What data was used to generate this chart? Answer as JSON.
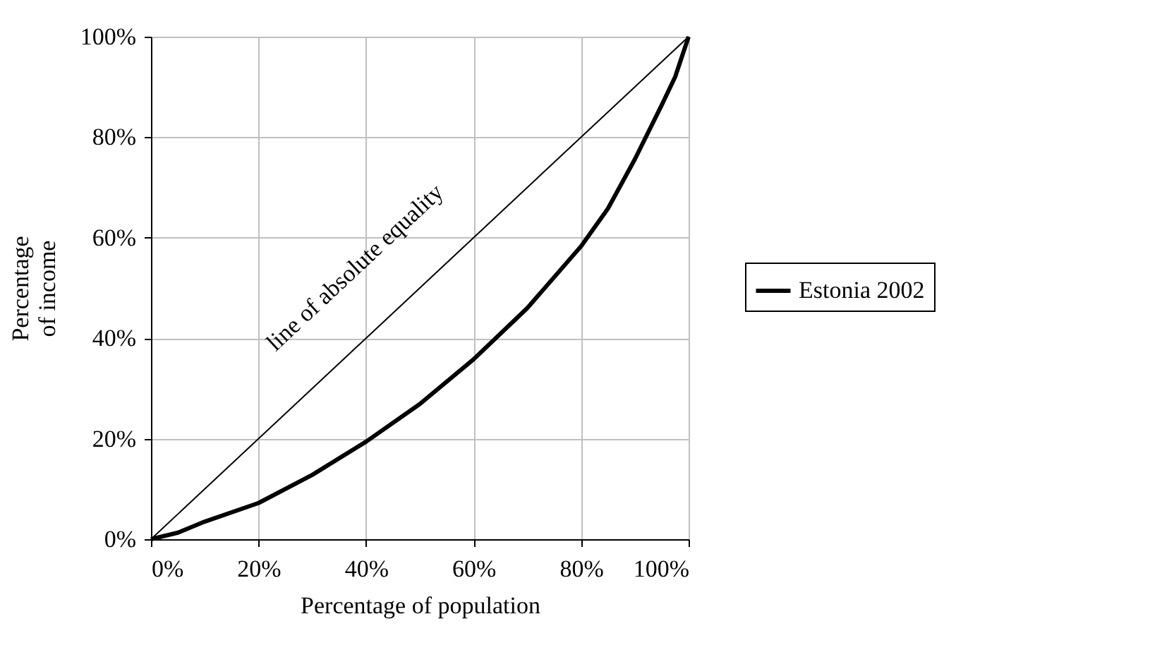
{
  "chart_data": {
    "type": "line",
    "xlabel": "Percentage of population",
    "ylabel": "Percentage\nof income",
    "xlim": [
      0,
      100
    ],
    "ylim": [
      0,
      100
    ],
    "xticks": [
      {
        "value": 0,
        "label": "0%"
      },
      {
        "value": 20,
        "label": "20%"
      },
      {
        "value": 40,
        "label": "40%"
      },
      {
        "value": 60,
        "label": "60%"
      },
      {
        "value": 80,
        "label": "80%"
      },
      {
        "value": 100,
        "label": "100%"
      }
    ],
    "yticks": [
      {
        "value": 0,
        "label": "0%"
      },
      {
        "value": 20,
        "label": "20%"
      },
      {
        "value": 40,
        "label": "40%"
      },
      {
        "value": 60,
        "label": "60%"
      },
      {
        "value": 80,
        "label": "80%"
      },
      {
        "value": 100,
        "label": "100%"
      }
    ],
    "series": [
      {
        "color": "#000000",
        "x": [
          0,
          100
        ],
        "values": [
          0,
          100
        ]
      },
      {
        "name": "Estonia 2002",
        "color": "#000000",
        "x": [
          0,
          5,
          10,
          20,
          30,
          40,
          50,
          60,
          70,
          80,
          85,
          90,
          95,
          97.5,
          100
        ],
        "values": [
          0,
          1.3,
          3.5,
          7.2,
          12.8,
          19.4,
          26.9,
          35.8,
          46,
          58.3,
          65.8,
          75.6,
          86.4,
          92,
          100
        ]
      }
    ],
    "annotations": [
      "line of absolute equality"
    ],
    "grid": true,
    "legend": "right",
    "marker": "none",
    "line_style": "solid"
  }
}
